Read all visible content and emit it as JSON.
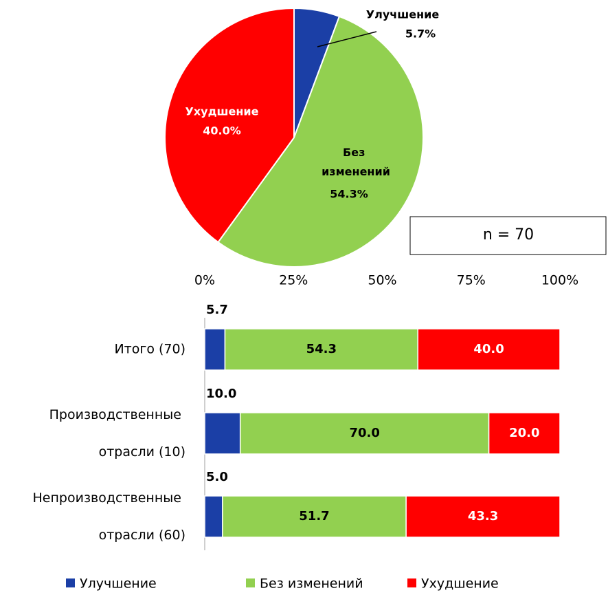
{
  "chart_data": [
    {
      "type": "pie",
      "categories": [
        "Улучшение",
        "Без изменений",
        "Ухудшение"
      ],
      "values": [
        5.7,
        54.3,
        40.0
      ],
      "value_labels": [
        "5.7%",
        "54.3%",
        "40.0%"
      ],
      "colors": [
        "#1b3fa6",
        "#92d050",
        "#ff0000"
      ],
      "annotation": "n = 70"
    },
    {
      "type": "stacked_barh",
      "categories": [
        "Итого (70)",
        "Производственные отрасли (10)",
        "Непроизводственные отрасли (60)"
      ],
      "series": [
        {
          "name": "Улучшение",
          "color": "#1b3fa6",
          "values": [
            5.7,
            10.0,
            5.0
          ],
          "value_labels": [
            "5.7",
            "10.0",
            "5.0"
          ]
        },
        {
          "name": "Без изменений",
          "color": "#92d050",
          "values": [
            54.3,
            70.0,
            51.7
          ],
          "value_labels": [
            "54.3",
            "70.0",
            "51.7"
          ]
        },
        {
          "name": "Ухудшение",
          "color": "#ff0000",
          "values": [
            40.0,
            20.0,
            43.3
          ],
          "value_labels": [
            "40.0",
            "20.0",
            "43.3"
          ]
        }
      ],
      "xlim": [
        0,
        100
      ],
      "xticks": [
        {
          "value": 0,
          "label": "0%"
        },
        {
          "value": 25,
          "label": "25%"
        },
        {
          "value": 50,
          "label": "50%"
        },
        {
          "value": 75,
          "label": "75%"
        },
        {
          "value": 100,
          "label": "100%"
        }
      ],
      "legend": "bottom"
    }
  ]
}
